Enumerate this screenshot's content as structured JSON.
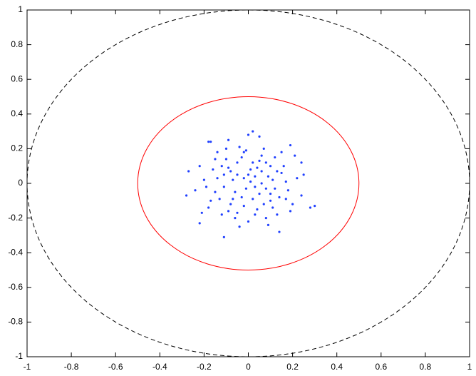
{
  "chart_data": {
    "type": "scatter",
    "xlim": [
      -1,
      1
    ],
    "ylim": [
      -1,
      1
    ],
    "xticks": [
      -1,
      -0.8,
      -0.6,
      -0.4,
      -0.2,
      0,
      0.2,
      0.4,
      0.6,
      0.8,
      1
    ],
    "yticks": [
      -1,
      -0.8,
      -0.6,
      -0.4,
      -0.2,
      0,
      0.2,
      0.4,
      0.6,
      0.8,
      1
    ],
    "grid": false,
    "circles": [
      {
        "radius": 1,
        "color": "#000000",
        "dashed": true
      },
      {
        "radius": 0.5,
        "color": "#ff0000",
        "dashed": false
      }
    ],
    "series": [
      {
        "color": "#2040ff",
        "x": [
          0.02,
          -0.27,
          -0.28,
          -0.22,
          0.28,
          0.3,
          0.14,
          -0.11,
          -0.18,
          -0.17,
          -0.09,
          0.19,
          0.24,
          0.25,
          0.24,
          0.0,
          0.05,
          -0.12,
          -0.05,
          0.03,
          0.08,
          -0.15,
          0.1,
          -0.02,
          0.06,
          -0.08,
          0.15,
          -0.2,
          0.12,
          -0.06,
          0.01,
          0.04,
          -0.1,
          0.18,
          -0.03,
          0.09,
          -0.14,
          0.2,
          -0.18,
          0.07,
          -0.01,
          0.13,
          -0.07,
          0.02,
          -0.11,
          0.16,
          -0.04,
          0.05,
          -0.16,
          0.11,
          -0.09,
          0.0,
          0.08,
          -0.22,
          0.21,
          -0.13,
          0.03,
          -0.05,
          0.14,
          -0.19,
          0.06,
          -0.02,
          0.1,
          -0.08,
          0.17,
          -0.12,
          0.01,
          0.04,
          -0.06,
          0.12,
          -0.24,
          0.22,
          -0.03,
          0.07,
          -0.15,
          0.09,
          -0.01,
          -0.17,
          0.19,
          0.02,
          -0.1,
          0.15,
          -0.04,
          0.11,
          -0.21,
          0.0,
          0.05,
          -0.07,
          0.13,
          -0.14,
          0.08,
          -0.02,
          0.03,
          -0.09,
          0.17,
          -0.05,
          0.06,
          -0.11,
          0.1
        ],
        "y": [
          0.3,
          0.07,
          -0.07,
          -0.23,
          -0.14,
          -0.13,
          -0.28,
          -0.31,
          0.24,
          0.24,
          0.25,
          0.22,
          0.12,
          0.05,
          -0.07,
          0.28,
          0.27,
          0.1,
          0.05,
          -0.02,
          0.12,
          -0.05,
          -0.1,
          0.18,
          0.0,
          -0.12,
          0.06,
          0.02,
          0.15,
          -0.2,
          0.08,
          -0.15,
          0.14,
          -0.04,
          -0.08,
          0.04,
          0.18,
          -0.12,
          -0.14,
          0.2,
          -0.03,
          -0.18,
          0.02,
          0.12,
          -0.02,
          0.1,
          0.21,
          -0.06,
          0.08,
          0.02,
          -0.16,
          -0.22,
          -0.2,
          0.1,
          0.16,
          -0.09,
          0.04,
          0.12,
          -0.08,
          -0.02,
          0.16,
          -0.13,
          0.1,
          0.07,
          0.01,
          -0.18,
          0.01,
          0.09,
          -0.05,
          -0.03,
          -0.04,
          0.03,
          0.15,
          -0.12,
          0.14,
          -0.24,
          0.19,
          -0.1,
          -0.16,
          -0.09,
          0.2,
          0.18,
          -0.25,
          -0.14,
          -0.17,
          0.05,
          0.13,
          -0.09,
          0.07,
          0.03,
          -0.03,
          0.03,
          -0.18,
          0.09,
          -0.09,
          -0.17,
          0.07,
          0.05,
          -0.06
        ]
      }
    ]
  }
}
